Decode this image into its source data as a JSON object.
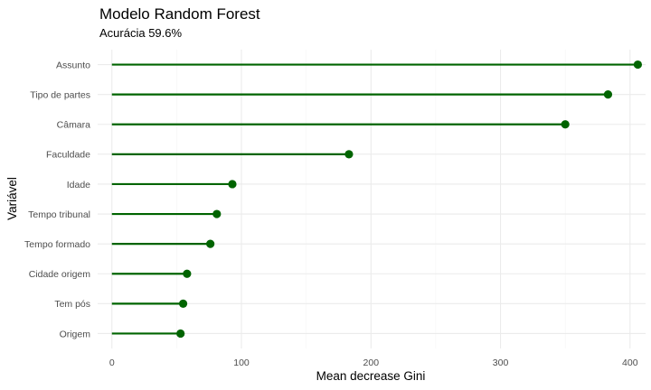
{
  "chart_data": {
    "type": "lollipop",
    "title": "Modelo Random Forest",
    "subtitle": "Acurácia 59.6%",
    "xlabel": "Mean decrease Gini",
    "ylabel": "Variável",
    "xlim": [
      -11,
      412
    ],
    "x_ticks": [
      0,
      100,
      200,
      300,
      400
    ],
    "x_tick_labels": [
      "0",
      "100",
      "200",
      "300",
      "400"
    ],
    "grid": true,
    "color": "#006400",
    "categories": [
      "Assunto",
      "Tipo de partes",
      "Câmara",
      "Faculdade",
      "Idade",
      "Tempo tribunal",
      "Tempo formado",
      "Cidade origem",
      "Tem pós",
      "Origem"
    ],
    "values": [
      406,
      383,
      350,
      183,
      93,
      81,
      76,
      58,
      55,
      53
    ]
  }
}
